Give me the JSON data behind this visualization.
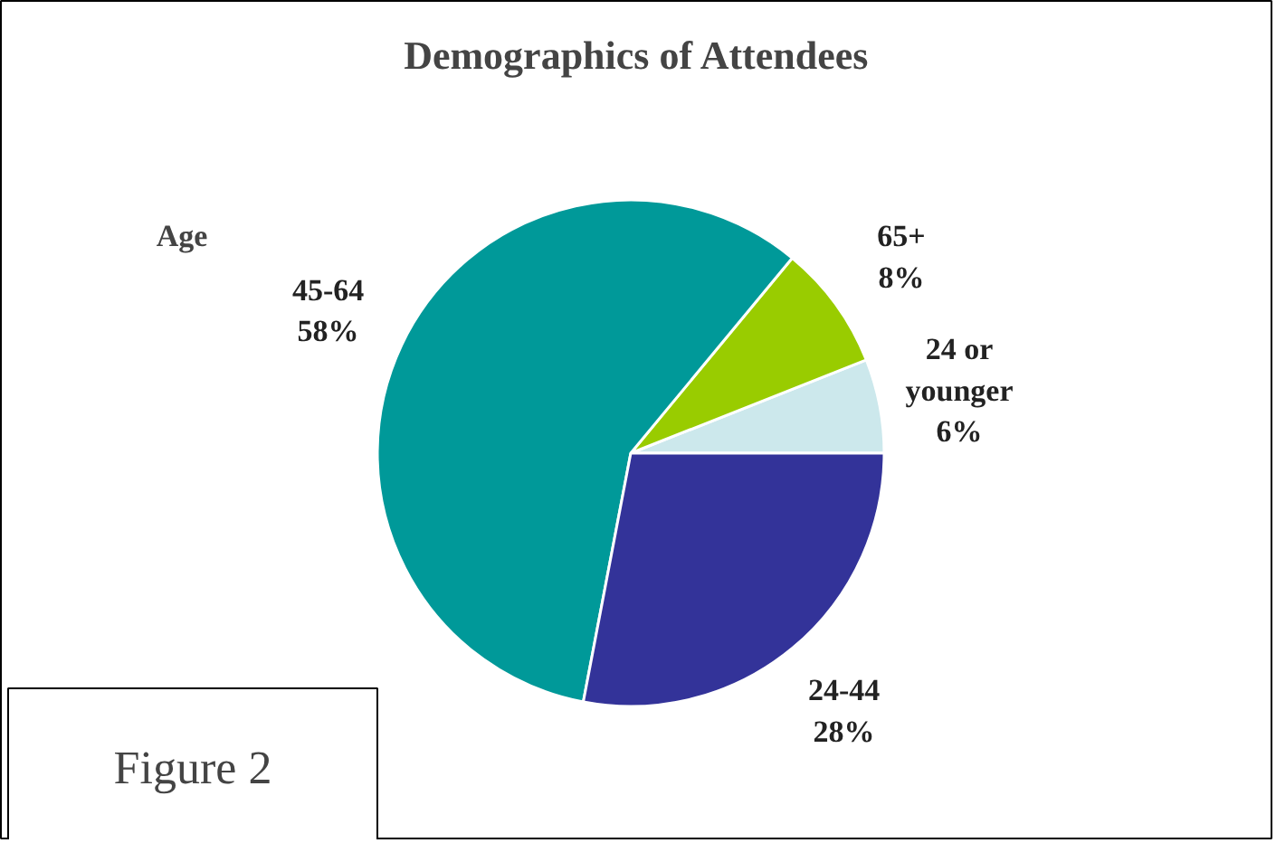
{
  "chart_data": {
    "type": "pie",
    "title": "Demographics of Attendees",
    "categories": [
      "24 or younger",
      "65+",
      "45-64",
      "24-44"
    ],
    "values": [
      6,
      8,
      58,
      28
    ],
    "value_labels": [
      "6%",
      "8%",
      "58%",
      "28%"
    ],
    "colors": [
      "#cce8ec",
      "#99cc00",
      "#009999",
      "#333399"
    ],
    "annotations": [
      "Age",
      "Figure 2"
    ]
  }
}
